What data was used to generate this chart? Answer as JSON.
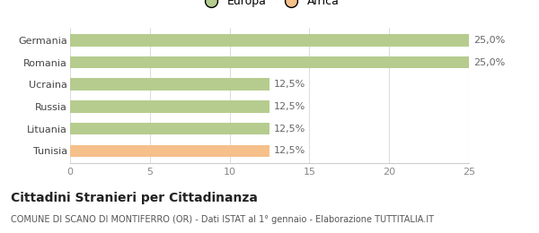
{
  "categories": [
    "Tunisia",
    "Lituania",
    "Russia",
    "Ucraina",
    "Romania",
    "Germania"
  ],
  "values": [
    12.5,
    12.5,
    12.5,
    12.5,
    25.0,
    25.0
  ],
  "colors": [
    "#f5c08a",
    "#b5cc8e",
    "#b5cc8e",
    "#b5cc8e",
    "#b5cc8e",
    "#b5cc8e"
  ],
  "bar_labels": [
    "12,5%",
    "12,5%",
    "12,5%",
    "12,5%",
    "25,0%",
    "25,0%"
  ],
  "xlim": [
    0,
    25
  ],
  "xticks": [
    0,
    5,
    10,
    15,
    20,
    25
  ],
  "legend_items": [
    {
      "label": "Europa",
      "color": "#b5cc8e"
    },
    {
      "label": "Africa",
      "color": "#f5c08a"
    }
  ],
  "title": "Cittadini Stranieri per Cittadinanza",
  "subtitle": "COMUNE DI SCANO DI MONTIFERRO (OR) - Dati ISTAT al 1° gennaio - Elaborazione TUTTITALIA.IT",
  "bg_color": "#ffffff",
  "bar_height": 0.55,
  "label_fontsize": 8,
  "title_fontsize": 10,
  "subtitle_fontsize": 7
}
